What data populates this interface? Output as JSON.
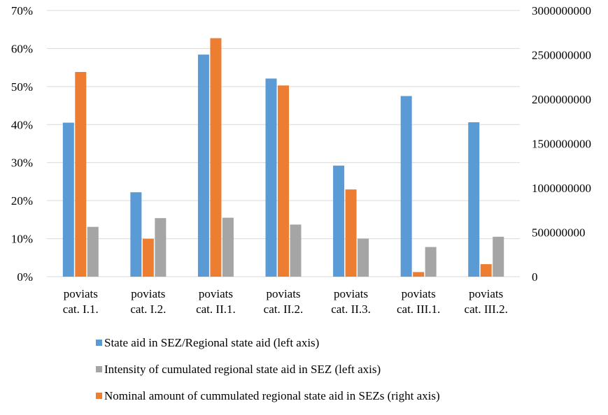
{
  "chart_data": {
    "type": "bar",
    "categories": [
      [
        "poviats",
        "cat. I.1."
      ],
      [
        "poviats",
        "cat. I.2."
      ],
      [
        "poviats",
        "cat. II.1."
      ],
      [
        "poviats",
        "cat. II.2."
      ],
      [
        "poviats",
        "cat. II.3."
      ],
      [
        "poviats",
        "cat. III.1."
      ],
      [
        "poviats",
        "cat. III.2."
      ]
    ],
    "series": [
      {
        "name": "State aid in SEZ/Regional state aid (left axis)",
        "axis": "left",
        "color": "#5B9BD5",
        "values": [
          0.405,
          0.222,
          0.584,
          0.521,
          0.292,
          0.475,
          0.406
        ]
      },
      {
        "name": "Nominal amount of cummulated regional state aid in SEZs (right axis)",
        "axis": "right",
        "color": "#ED7D31",
        "values": [
          2307000000,
          427000000,
          2688000000,
          2155000000,
          983000000,
          52000000,
          141000000
        ]
      },
      {
        "name": "Intensity of cumulated regional state aid in SEZ (left axis)",
        "axis": "left",
        "color": "#A5A5A5",
        "values": [
          0.131,
          0.154,
          0.155,
          0.137,
          0.1,
          0.078,
          0.105
        ]
      }
    ],
    "legend_order": [
      0,
      2,
      1
    ],
    "y_left": {
      "lim": [
        0,
        0.7
      ],
      "ticks": [
        0,
        0.1,
        0.2,
        0.3,
        0.4,
        0.5,
        0.6,
        0.7
      ],
      "tick_labels": [
        "0%",
        "10%",
        "20%",
        "30%",
        "40%",
        "50%",
        "60%",
        "70%"
      ]
    },
    "y_right": {
      "lim": [
        0,
        3000000000
      ],
      "ticks": [
        0,
        500000000,
        1000000000,
        1500000000,
        2000000000,
        2500000000,
        3000000000
      ],
      "tick_labels": [
        "0",
        "500000000",
        "1000000000",
        "1500000000",
        "2000000000",
        "2500000000",
        "3000000000"
      ]
    },
    "grid": true,
    "gridline_color": "#D9D9D9",
    "legend_position": "bottom"
  }
}
